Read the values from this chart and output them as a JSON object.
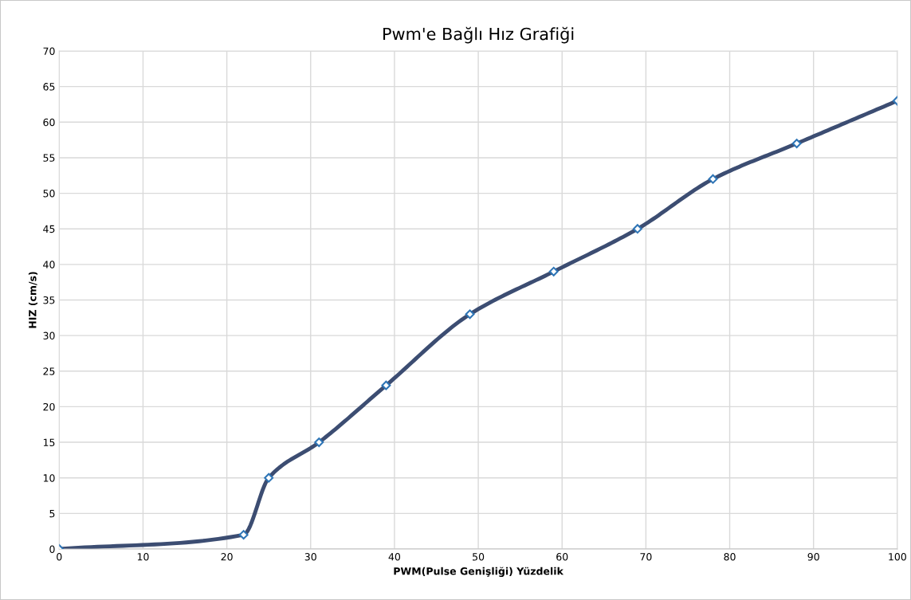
{
  "chart_data": {
    "type": "line",
    "title": "Pwm'e Bağlı Hız Grafiği",
    "xlabel": "PWM(Pulse Genişliği) Yüzdelik",
    "ylabel": "HIZ (cm/s)",
    "x": [
      0,
      22,
      25,
      31,
      39,
      49,
      59,
      69,
      78,
      88,
      100
    ],
    "series": [
      {
        "color": "#3c4d72",
        "values": [
          0,
          2,
          10,
          15,
          23,
          33,
          39,
          45,
          52,
          57,
          63
        ]
      }
    ],
    "xlim": [
      0,
      100
    ],
    "xticks": [
      0,
      10,
      20,
      30,
      40,
      50,
      60,
      70,
      80,
      90,
      100
    ],
    "ylim": [
      0,
      70
    ],
    "yticks": [
      0,
      5,
      10,
      15,
      20,
      25,
      30,
      35,
      40,
      45,
      50,
      55,
      60,
      65,
      70
    ],
    "grid": true,
    "marker": "diamond",
    "line_style": "solid"
  }
}
